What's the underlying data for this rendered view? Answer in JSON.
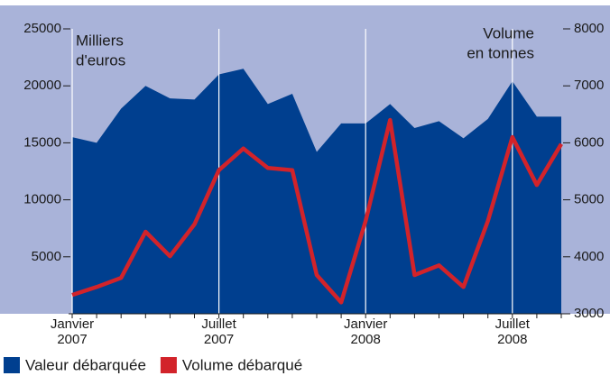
{
  "chart_data": {
    "type": "area-line",
    "y_label": [
      "Milliers",
      "d'euros"
    ],
    "y2_label": [
      "Volume",
      "en tonnes"
    ],
    "categories": [
      "Janvier 2007",
      null,
      null,
      null,
      null,
      null,
      "Juillet 2007",
      null,
      null,
      null,
      null,
      null,
      "Janvier 2008",
      null,
      null,
      null,
      null,
      null,
      "Juillet 2008",
      null,
      null
    ],
    "series": [
      {
        "name": "Valeur débarquée",
        "color": "#003f8f",
        "kind": "area",
        "values": [
          15500,
          15000,
          18000,
          20000,
          18900,
          18800,
          21000,
          21500,
          18400,
          19300,
          14200,
          16700,
          16700,
          18400,
          16300,
          16900,
          15400,
          17100,
          20400,
          17300,
          17300
        ]
      },
      {
        "name": "Volume débarqué",
        "color": "#d2232a",
        "kind": "line",
        "axis": "y2",
        "values": [
          3330,
          3470,
          3630,
          4440,
          4010,
          4570,
          5520,
          5900,
          5560,
          5520,
          3680,
          3200,
          4630,
          6400,
          3680,
          3850,
          3470,
          4630,
          6100,
          5260,
          5980
        ]
      }
    ],
    "ylim": [
      0,
      25000
    ],
    "yticks": [
      5000,
      10000,
      15000,
      20000,
      25000
    ],
    "y2lim": [
      3000,
      8000
    ],
    "y2ticks": [
      3000,
      4000,
      5000,
      6000,
      7000,
      8000
    ],
    "background": "#a9b3d9",
    "grid": true
  }
}
